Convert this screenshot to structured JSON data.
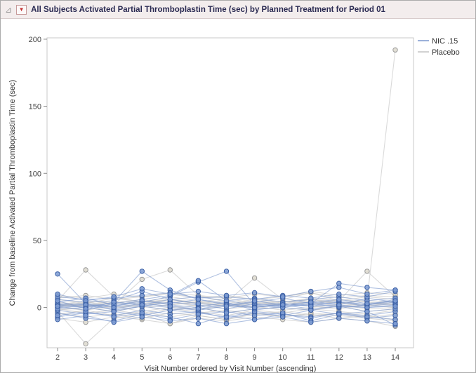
{
  "header": {
    "disclosure_icon": "⊿",
    "menu_icon": "▼",
    "title": "All Subjects Activated Partial Thromboplastin Time (sec) by Planned Treatment for Period 01"
  },
  "chart_data": {
    "type": "line",
    "title": "All Subjects Activated Partial Thromboplastin Time (sec) by Planned Treatment for Period 01",
    "xlabel": "Visit Number ordered by Visit Number (ascending)",
    "ylabel": "Change from baseline Activated Partial Thromboplastin Time (sec)",
    "x": [
      2,
      3,
      4,
      5,
      6,
      7,
      8,
      9,
      10,
      11,
      12,
      13,
      14
    ],
    "y_ticks": [
      0,
      50,
      100,
      150,
      200
    ],
    "ylim": [
      -30,
      201
    ],
    "grid": false,
    "legend_position": "top-right",
    "legend": [
      "NIC .15",
      "Placebo"
    ],
    "groups": [
      {
        "name": "Placebo",
        "line_color": "#c2c2c2",
        "marker_fill": "#dedacf",
        "marker_stroke": "#9a9a9a",
        "subjects": [
          [
            2,
            1,
            3,
            0,
            2,
            4,
            1,
            3,
            2,
            5,
            3,
            6,
            192
          ],
          [
            5,
            28,
            8,
            4,
            6,
            3,
            5,
            2,
            4,
            6,
            3,
            5,
            4
          ],
          [
            -3,
            -27,
            -8,
            -5,
            -12,
            -6,
            -9,
            -4,
            -7,
            -5,
            -8,
            -6,
            -9
          ],
          [
            1,
            4,
            2,
            21,
            28,
            9,
            4,
            22,
            6,
            11,
            5,
            27,
            8
          ],
          [
            0,
            2,
            -1,
            3,
            1,
            -2,
            2,
            0,
            3,
            1,
            -1,
            2,
            0
          ],
          [
            -5,
            -2,
            -6,
            -3,
            -7,
            -4,
            -2,
            -5,
            -3,
            -6,
            -4,
            -7,
            -5
          ],
          [
            7,
            9,
            6,
            8,
            10,
            7,
            9,
            6,
            8,
            11,
            7,
            9,
            8
          ],
          [
            3,
            1,
            4,
            2,
            5,
            3,
            1,
            4,
            2,
            5,
            3,
            1,
            4
          ],
          [
            -8,
            -11,
            -7,
            -9,
            -12,
            -8,
            -10,
            -7,
            -9,
            -11,
            -8,
            -10,
            -14
          ],
          [
            2,
            5,
            3,
            6,
            2,
            4,
            7,
            3,
            5,
            2,
            6,
            4,
            2
          ],
          [
            -1,
            -4,
            -2,
            -5,
            -1,
            -3,
            -6,
            -2,
            -4,
            -1,
            -3,
            -5,
            -2
          ],
          [
            6,
            3,
            7,
            4,
            8,
            5,
            3,
            6,
            4,
            7,
            5,
            8,
            6
          ],
          [
            0,
            -2,
            1,
            -3,
            0,
            2,
            -1,
            1,
            -2,
            0,
            2,
            -1,
            0
          ],
          [
            9,
            7,
            10,
            8,
            11,
            9,
            7,
            10,
            8,
            12,
            9,
            11,
            10
          ],
          [
            -4,
            -7,
            -5,
            -8,
            -4,
            -6,
            -9,
            -5,
            -7,
            -4,
            -6,
            -8,
            -10
          ],
          [
            4,
            2,
            5,
            3,
            6,
            4,
            2,
            5,
            3,
            6,
            4,
            2,
            5
          ],
          [
            -2,
            0,
            -3,
            1,
            -2,
            0,
            -4,
            -1,
            0,
            -2,
            1,
            -3,
            -1
          ],
          [
            1,
            3,
            0,
            2,
            4,
            1,
            3,
            0,
            2,
            4,
            1,
            3,
            2
          ]
        ]
      },
      {
        "name": "NIC .15",
        "line_color": "#7b97cd",
        "marker_fill": "#7d9bd2",
        "marker_stroke": "#3a5fa5",
        "subjects": [
          [
            25,
            3,
            1,
            5,
            2,
            0,
            4,
            -2,
            1,
            3,
            0,
            2,
            5
          ],
          [
            -7,
            -4,
            -6,
            -2,
            -5,
            -3,
            -8,
            -4,
            -6,
            -2,
            -5,
            -3,
            -13
          ],
          [
            2,
            0,
            4,
            27,
            13,
            6,
            3,
            1,
            2,
            4,
            2,
            7,
            4
          ],
          [
            3,
            2,
            1,
            4,
            8,
            19,
            27,
            2,
            3,
            1,
            4,
            2,
            6
          ],
          [
            1,
            -2,
            3,
            6,
            9,
            20,
            5,
            2,
            0,
            3,
            18,
            15,
            13
          ],
          [
            -4,
            -8,
            -10,
            -5,
            -7,
            -12,
            -6,
            -9,
            -5,
            -7,
            -4,
            -8,
            -6
          ],
          [
            6,
            4,
            5,
            12,
            6,
            8,
            5,
            7,
            4,
            6,
            8,
            5,
            7
          ],
          [
            0,
            1,
            -1,
            2,
            0,
            -2,
            1,
            0,
            2,
            -1,
            1,
            0,
            2
          ],
          [
            -2,
            -5,
            -3,
            -6,
            -2,
            -4,
            -7,
            -3,
            -5,
            -8,
            -4,
            -6,
            -3
          ],
          [
            8,
            6,
            7,
            9,
            11,
            7,
            8,
            6,
            9,
            7,
            10,
            8,
            12
          ],
          [
            2,
            3,
            -2,
            1,
            4,
            2,
            -1,
            3,
            1,
            2,
            4,
            1,
            3
          ],
          [
            -6,
            -3,
            -7,
            -4,
            -9,
            -5,
            -3,
            -6,
            -4,
            -10,
            -5,
            -7,
            -9
          ],
          [
            4,
            7,
            2,
            5,
            3,
            6,
            2,
            4,
            7,
            3,
            5,
            2,
            4
          ],
          [
            -1,
            0,
            -3,
            1,
            -2,
            0,
            -4,
            -1,
            0,
            -2,
            1,
            -3,
            -1
          ],
          [
            10,
            5,
            8,
            14,
            10,
            12,
            9,
            11,
            8,
            12,
            15,
            10,
            13
          ],
          [
            -9,
            -6,
            -11,
            -7,
            -10,
            -8,
            -12,
            -9,
            -7,
            -11,
            -8,
            -10,
            -12
          ],
          [
            1,
            2,
            0,
            3,
            1,
            -1,
            2,
            0,
            3,
            1,
            2,
            0,
            1
          ],
          [
            5,
            -1,
            4,
            2,
            6,
            3,
            1,
            5,
            2,
            4,
            6,
            3,
            5
          ]
        ]
      }
    ]
  }
}
